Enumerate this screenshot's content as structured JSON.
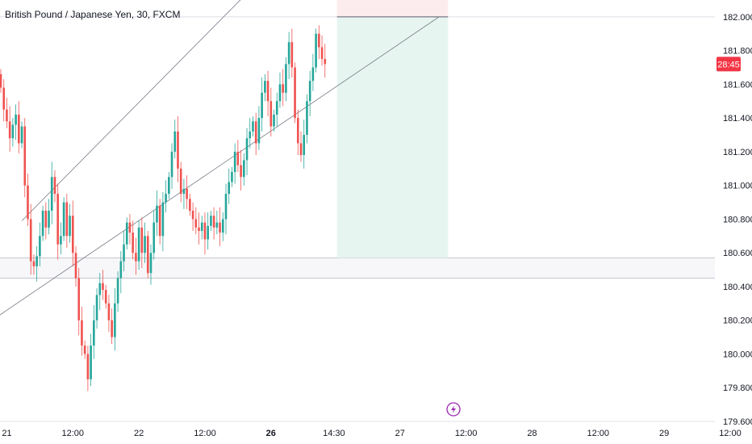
{
  "header": {
    "title": "British Pound / Japanese Yen, 30, FXCM"
  },
  "colors": {
    "up": "#26a69a",
    "down": "#ef5350",
    "channel": "#787b86",
    "target_zone": "#e7f5f1",
    "stop_zone": "#fdeced",
    "support_zone": "#f7f7f9",
    "price_tag": "#f23645",
    "lightning": "#9c27b0"
  },
  "price_tag": {
    "price": 181.72,
    "label": "28:45"
  },
  "icons": {
    "lightning": "lightning-icon"
  },
  "chart_data": {
    "type": "candlestick",
    "title": "British Pound / Japanese Yen, 30, FXCM",
    "y_range": [
      179.6,
      182.1
    ],
    "y_ticks": [
      "182.000",
      "181.800",
      "181.600",
      "181.400",
      "181.200",
      "181.000",
      "180.800",
      "180.600",
      "180.400",
      "180.200",
      "180.000",
      "179.800",
      "179.600"
    ],
    "x_ticks": [
      {
        "label": "21",
        "bar": 2,
        "bold": false
      },
      {
        "label": "12:00",
        "bar": 24,
        "bold": false
      },
      {
        "label": "22",
        "bar": 46,
        "bold": false
      },
      {
        "label": "12:00",
        "bar": 68,
        "bold": false
      },
      {
        "label": "26",
        "bar": 90,
        "bold": true
      },
      {
        "label": "14:30",
        "bar": 111,
        "bold": false
      },
      {
        "label": "27",
        "bar": 133,
        "bold": false
      },
      {
        "label": "12:00",
        "bar": 155,
        "bold": false
      },
      {
        "label": "28",
        "bar": 177,
        "bold": false
      },
      {
        "label": "12:00",
        "bar": 199,
        "bold": false
      },
      {
        "label": "29",
        "bar": 221,
        "bold": false
      },
      {
        "label": "12:00",
        "bar": 243,
        "bold": false
      }
    ],
    "closes": [
      181.58,
      181.45,
      181.38,
      181.28,
      181.36,
      181.42,
      181.25,
      181.35,
      181.0,
      180.8,
      180.55,
      180.52,
      180.58,
      180.7,
      180.85,
      180.75,
      180.85,
      181.05,
      180.95,
      180.65,
      180.7,
      180.9,
      180.7,
      180.82,
      180.6,
      180.45,
      180.2,
      180.05,
      180.0,
      179.85,
      180.05,
      180.2,
      180.35,
      180.42,
      180.38,
      180.3,
      180.2,
      180.1,
      180.3,
      180.45,
      180.55,
      180.65,
      180.78,
      180.72,
      180.6,
      180.55,
      180.75,
      180.6,
      180.7,
      180.48,
      180.6,
      180.78,
      180.88,
      180.7,
      180.9,
      180.95,
      181.05,
      181.2,
      181.32,
      181.1,
      180.95,
      180.98,
      180.92,
      180.85,
      180.8,
      180.75,
      180.73,
      180.78,
      180.68,
      180.76,
      180.82,
      180.75,
      180.78,
      180.72,
      180.8,
      180.95,
      181.02,
      181.08,
      181.2,
      181.12,
      181.05,
      181.15,
      181.28,
      181.32,
      181.38,
      181.25,
      181.4,
      181.55,
      181.62,
      181.5,
      181.35,
      181.42,
      181.5,
      181.6,
      181.55,
      181.72,
      181.85,
      181.7,
      181.4,
      181.25,
      181.18,
      181.3,
      181.5,
      181.62,
      181.7,
      181.9,
      181.82,
      181.75,
      181.72
    ],
    "channel": [
      {
        "name": "upper",
        "from": {
          "bar": 7,
          "price": 180.79
        },
        "to": {
          "bar": 152,
          "price": 183.4
        }
      },
      {
        "name": "lower",
        "from": {
          "bar": -17,
          "price": 180.03
        },
        "to": {
          "bar": 146,
          "price": 182.0
        }
      }
    ],
    "zones": {
      "support": [
        180.45,
        180.57
      ],
      "target": [
        180.57,
        182.0
      ],
      "stop": [
        182.0,
        182.1
      ],
      "entry": 182.0,
      "x_from_bar": 112,
      "x_to_bar": 149
    }
  }
}
